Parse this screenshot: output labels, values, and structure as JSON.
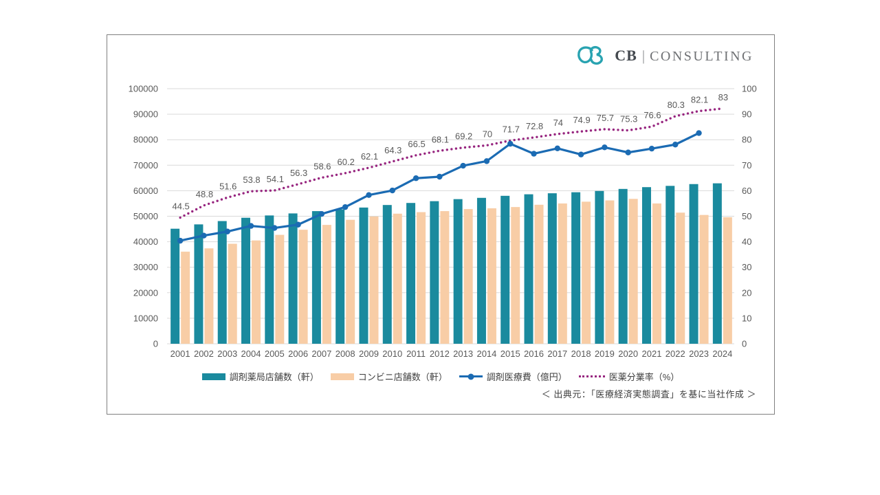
{
  "logo": {
    "cb": "CB",
    "divider": "|",
    "consulting": "CONSULTING",
    "mark_color": "#29a3b1"
  },
  "source_note": "＜ 出典元：「医療経済実態調査」を基に当社作成 ＞",
  "colors": {
    "pharmacy_bar": "#1a8a9e",
    "convenience_bar": "#f8cda6",
    "medical_line": "#1b6bb3",
    "separation_dotted": "#97257f",
    "axis_text": "#595959",
    "gridline": "#d9d9d9",
    "card_border": "#7f7f7f"
  },
  "chart_data": {
    "type": "combo",
    "title": "",
    "grid": true,
    "legend_position": "bottom",
    "categories": [
      "2001",
      "2002",
      "2003",
      "2004",
      "2005",
      "2006",
      "2007",
      "2008",
      "2009",
      "2010",
      "2011",
      "2012",
      "2013",
      "2014",
      "2015",
      "2016",
      "2017",
      "2018",
      "2019",
      "2020",
      "2021",
      "2022",
      "2023",
      "2024"
    ],
    "left_axis": {
      "min": 0,
      "max": 100000,
      "step": 10000
    },
    "right_axis": {
      "min": 0,
      "max": 90,
      "step": 10
    },
    "series": [
      {
        "name": "調剤薬局店舗数（軒）",
        "type": "bar",
        "axis": "left",
        "color": "#1a8a9e",
        "values": [
          45100,
          46800,
          48100,
          49400,
          50300,
          51100,
          52000,
          52700,
          53400,
          54400,
          55200,
          55900,
          56700,
          57200,
          58000,
          58600,
          59000,
          59400,
          59900,
          60700,
          61400,
          61900,
          62600,
          62900
        ]
      },
      {
        "name": "コンビニ店舗数（軒）",
        "type": "bar",
        "axis": "left",
        "color": "#f8cda6",
        "values": [
          36100,
          37400,
          39200,
          40500,
          42700,
          44700,
          46600,
          48600,
          49900,
          51000,
          51600,
          52000,
          52800,
          53100,
          53600,
          54500,
          55000,
          55700,
          56200,
          56800,
          55000,
          51400,
          50500,
          49600
        ]
      },
      {
        "name": "調剤医療費（億円）",
        "type": "line",
        "axis": "left",
        "color": "#1b6bb3",
        "values": [
          40400,
          42400,
          44000,
          46200,
          45400,
          46700,
          50900,
          53600,
          58300,
          60100,
          64900,
          65500,
          69800,
          71600,
          78400,
          74500,
          76600,
          74200,
          77000,
          75000,
          76500,
          78100,
          82600,
          null
        ]
      },
      {
        "name": "医薬分業率（%）",
        "type": "dotted-line",
        "axis": "right",
        "color": "#97257f",
        "values": [
          44.5,
          48.8,
          51.6,
          53.8,
          54.1,
          56.3,
          58.6,
          60.2,
          62.1,
          64.3,
          66.5,
          68.1,
          69.2,
          70,
          71.7,
          72.8,
          74,
          74.9,
          75.7,
          75.3,
          76.6,
          80.3,
          82.1,
          83
        ],
        "data_labels": [
          "44.5",
          "48.8",
          "51.6",
          "53.8",
          "54.1",
          "56.3",
          "58.6",
          "60.2",
          "62.1",
          "64.3",
          "66.5",
          "68.1",
          "69.2",
          "70",
          "71.7",
          "72.8",
          "74",
          "74.9",
          "75.7",
          "75.3",
          "76.6",
          "80.3",
          "82.1",
          "83"
        ]
      }
    ]
  }
}
